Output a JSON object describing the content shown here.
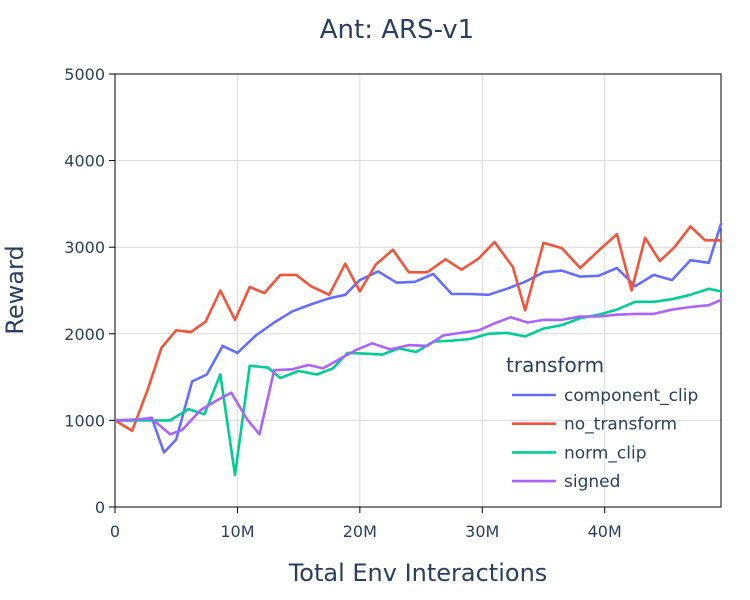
{
  "chart_data": {
    "type": "line",
    "title": "Ant: ARS-v1",
    "xlabel": "Total Env Interactions",
    "ylabel": "Reward",
    "xlim": [
      0,
      49500000
    ],
    "ylim": [
      0,
      5000
    ],
    "x_ticks": [
      0,
      10000000,
      20000000,
      30000000,
      40000000
    ],
    "x_tick_labels": [
      "0",
      "10M",
      "20M",
      "30M",
      "40M"
    ],
    "y_ticks": [
      0,
      1000,
      2000,
      3000,
      4000,
      5000
    ],
    "y_tick_labels": [
      "0",
      "1000",
      "2000",
      "3000",
      "4000",
      "5000"
    ],
    "grid": true,
    "legend": {
      "title": "transform",
      "placement": "right"
    },
    "series": [
      {
        "name": "component_clip",
        "color": "#636efa",
        "x": [
          0,
          1500000,
          3000000,
          4000000,
          5000000,
          6300000,
          7500000,
          8800000,
          10000000,
          11500000,
          13000000,
          14500000,
          16000000,
          17500000,
          18800000,
          20000000,
          21500000,
          23000000,
          24500000,
          26000000,
          27500000,
          29000000,
          30500000,
          32000000,
          33500000,
          35000000,
          36500000,
          38000000,
          39500000,
          41000000,
          42500000,
          44000000,
          45500000,
          47000000,
          48500000,
          49500000
        ],
        "values": [
          1000,
          1000,
          1030,
          630,
          780,
          1450,
          1530,
          1860,
          1780,
          1980,
          2130,
          2260,
          2340,
          2410,
          2450,
          2620,
          2720,
          2590,
          2600,
          2690,
          2460,
          2460,
          2450,
          2520,
          2600,
          2710,
          2730,
          2660,
          2670,
          2760,
          2550,
          2680,
          2620,
          2850,
          2820,
          3270
        ]
      },
      {
        "name": "no_transform",
        "color": "#ef553b",
        "x": [
          0,
          1400000,
          2700000,
          3800000,
          5000000,
          6200000,
          7400000,
          8600000,
          9800000,
          11000000,
          12200000,
          13500000,
          14800000,
          16000000,
          17500000,
          18800000,
          20000000,
          21300000,
          22700000,
          24000000,
          25500000,
          27000000,
          28300000,
          29700000,
          31000000,
          32500000,
          33500000,
          35000000,
          36500000,
          38000000,
          39500000,
          41000000,
          42200000,
          43300000,
          44500000,
          45700000,
          47000000,
          48200000,
          49500000
        ],
        "values": [
          1000,
          880,
          1370,
          1840,
          2040,
          2020,
          2140,
          2500,
          2160,
          2540,
          2470,
          2680,
          2680,
          2550,
          2450,
          2810,
          2490,
          2800,
          2970,
          2710,
          2710,
          2860,
          2740,
          2870,
          3060,
          2770,
          2270,
          3050,
          2990,
          2760,
          2960,
          3150,
          2500,
          3110,
          2840,
          3000,
          3240,
          3080,
          3080
        ]
      },
      {
        "name": "norm_clip",
        "color": "#00cc96",
        "x": [
          0,
          1500000,
          3000000,
          4500000,
          6000000,
          7300000,
          8600000,
          9800000,
          11000000,
          12500000,
          13500000,
          15000000,
          16500000,
          17800000,
          19000000,
          20500000,
          21800000,
          23200000,
          24600000,
          26000000,
          27500000,
          29000000,
          30500000,
          32000000,
          33500000,
          35000000,
          36500000,
          38000000,
          39500000,
          41000000,
          42500000,
          44000000,
          45500000,
          47000000,
          48500000,
          49500000
        ],
        "values": [
          1000,
          1000,
          1000,
          1000,
          1130,
          1070,
          1530,
          370,
          1630,
          1610,
          1490,
          1570,
          1530,
          1600,
          1780,
          1770,
          1760,
          1830,
          1790,
          1910,
          1920,
          1940,
          2000,
          2010,
          1970,
          2060,
          2100,
          2180,
          2220,
          2280,
          2370,
          2370,
          2400,
          2450,
          2520,
          2490
        ]
      },
      {
        "name": "signed",
        "color": "#ab63fa",
        "x": [
          0,
          1500000,
          3000000,
          4500000,
          5500000,
          7000000,
          8300000,
          9500000,
          10800000,
          11800000,
          13000000,
          14500000,
          15800000,
          17000000,
          18500000,
          19800000,
          21000000,
          22500000,
          24000000,
          25500000,
          26800000,
          28200000,
          29700000,
          31000000,
          32300000,
          33700000,
          35000000,
          36500000,
          38000000,
          39500000,
          41000000,
          42500000,
          44000000,
          45500000,
          47000000,
          48500000,
          49500000
        ],
        "values": [
          1000,
          1010,
          1020,
          840,
          890,
          1120,
          1230,
          1320,
          1010,
          840,
          1580,
          1590,
          1640,
          1600,
          1720,
          1820,
          1890,
          1820,
          1870,
          1860,
          1980,
          2010,
          2040,
          2120,
          2190,
          2130,
          2160,
          2160,
          2200,
          2200,
          2220,
          2230,
          2230,
          2280,
          2310,
          2330,
          2390
        ]
      }
    ]
  }
}
